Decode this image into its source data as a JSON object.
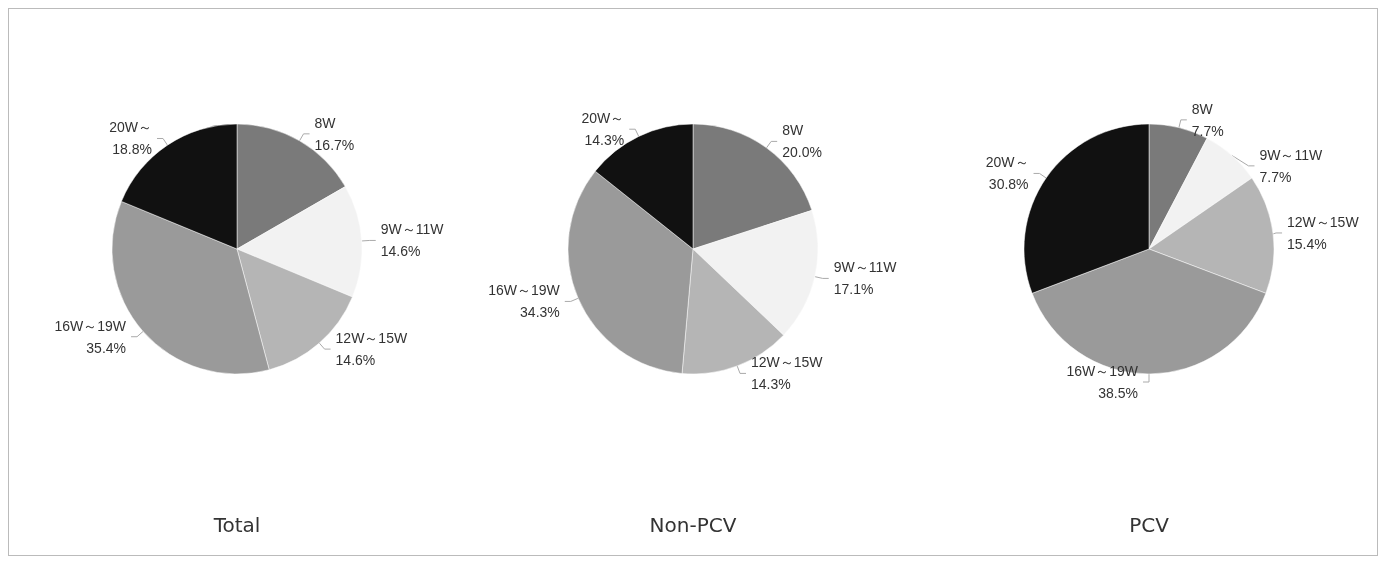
{
  "chart_data": [
    {
      "type": "pie",
      "title": "Total",
      "categories": [
        "8W",
        "9W～11W",
        "12W～15W",
        "16W～19W",
        "20W～"
      ],
      "values": [
        16.7,
        14.6,
        14.6,
        35.4,
        18.8
      ],
      "colors": [
        "#7a7a7a",
        "#f2f2f2",
        "#b5b5b5",
        "#9a9a9a",
        "#111111"
      ],
      "value_labels": [
        "16.7%",
        "14.6%",
        "14.6%",
        "35.4%",
        "18.8%"
      ]
    },
    {
      "type": "pie",
      "title": "Non-PCV",
      "categories": [
        "8W",
        "9W～11W",
        "12W～15W",
        "16W～19W",
        "20W～"
      ],
      "values": [
        20.0,
        17.1,
        14.3,
        34.3,
        14.3
      ],
      "colors": [
        "#7a7a7a",
        "#f2f2f2",
        "#b5b5b5",
        "#9a9a9a",
        "#111111"
      ],
      "value_labels": [
        "20.0%",
        "17.1%",
        "14.3%",
        "34.3%",
        "14.3%"
      ]
    },
    {
      "type": "pie",
      "title": "PCV",
      "categories": [
        "8W",
        "9W～11W",
        "12W～15W",
        "16W～19W",
        "20W～"
      ],
      "values": [
        7.7,
        7.7,
        15.4,
        38.5,
        30.8
      ],
      "colors": [
        "#7a7a7a",
        "#f2f2f2",
        "#b5b5b5",
        "#9a9a9a",
        "#111111"
      ],
      "value_labels": [
        "7.7%",
        "7.7%",
        "15.4%",
        "38.5%",
        "30.8%"
      ]
    }
  ]
}
